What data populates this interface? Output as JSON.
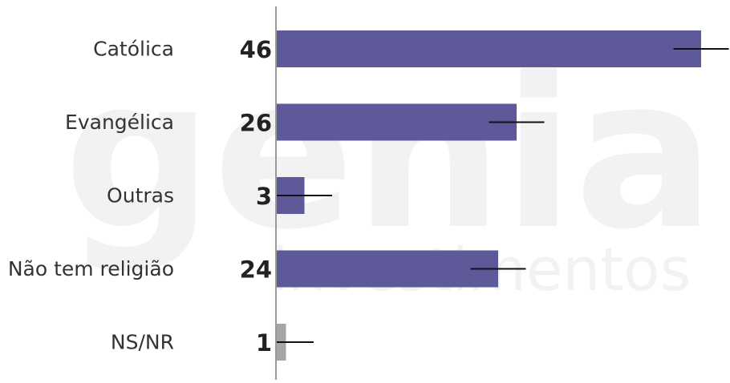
{
  "watermark": {
    "brand": "genial",
    "sub": "investimentos"
  },
  "chart_data": {
    "type": "bar",
    "orientation": "horizontal",
    "categories": [
      "Católica",
      "Evangélica",
      "Outras",
      "Não tem religião",
      "NS/NR"
    ],
    "values": [
      46,
      26,
      3,
      24,
      1
    ],
    "error_margin": 3,
    "value_labels": [
      "46",
      "26",
      "3",
      "24",
      "1"
    ],
    "xlim": [
      0,
      50
    ],
    "title": "",
    "xlabel": "",
    "ylabel": "",
    "grid": false,
    "legend": "none",
    "colors": {
      "bar": "#5e5a99",
      "bar_muted": "#a6a6a6",
      "error": "#111111",
      "axis": "#9a9a9a"
    },
    "muted_categories": [
      "NS/NR"
    ]
  }
}
